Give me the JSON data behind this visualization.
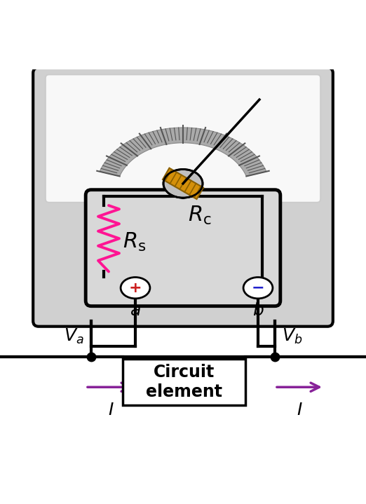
{
  "bg_color": "#ffffff",
  "outer_box_color": "#d0d0d0",
  "inner_face_color": "#f0f0f0",
  "circuit_inner_color": "#d8d8d8",
  "wire_color": "#000000",
  "resistor_color": "#ff1493",
  "coil_color": "#d4900a",
  "coil_stripe_color": "#8B6000",
  "coil_circle_color": "#c0c0c0",
  "needle_color": "#000000",
  "arc_color": "#aaaaaa",
  "arc_edge_color": "#888888",
  "tick_color": "#555555",
  "terminal_plus_color": "#cc2222",
  "terminal_minus_color": "#2222cc",
  "arrow_color": "#882299",
  "circuit_box_bg": "#ffffff",
  "label_color": "#000000",
  "Va_label": "$V_a$",
  "Vb_label": "$V_b$",
  "I_label": "$I$",
  "a_label": "$a$",
  "b_label": "$b$",
  "Rs_label": "$R_\\mathrm{s}$",
  "Rc_label": "$R_\\mathrm{c}$",
  "circuit_label": "Circuit\nelement",
  "figw": 5.22,
  "figh": 7.19,
  "dpi": 100
}
